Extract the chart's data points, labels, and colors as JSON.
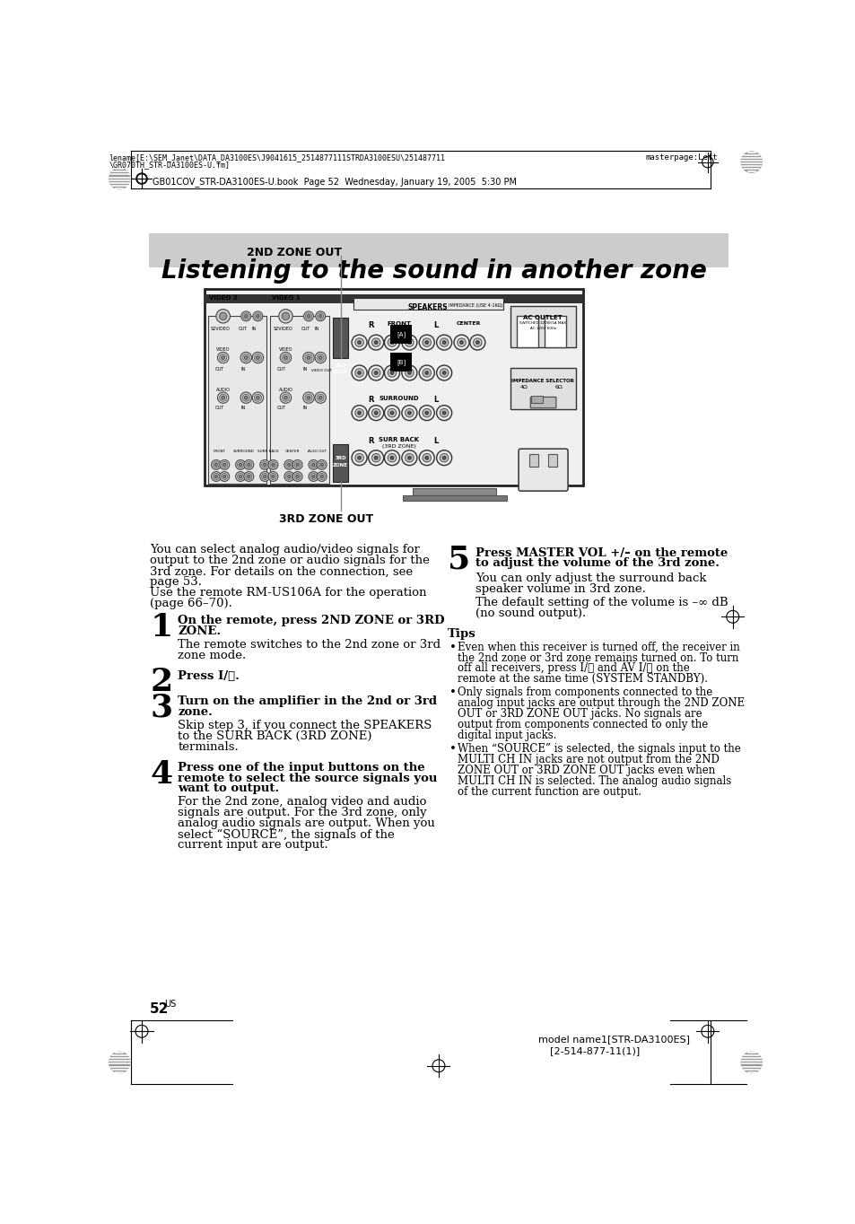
{
  "page_bg": "#ffffff",
  "header_line1": "lename[E:\\SEM_Janet\\DATA_DA3100ES\\J9041615_2514877111STRDA3100ESU\\251487711",
  "header_line2": "\\GR070TH_STR-DA3100ES-U.fm]",
  "header_right": "masterpage:Left",
  "header_bookline": "GB01COV_STR-DA3100ES-U.book  Page 52  Wednesday, January 19, 2005  5:30 PM",
  "title": "Listening to the sound in another zone",
  "title_bg": "#c8c8c8",
  "label_2nd_zone": "2ND ZONE OUT",
  "label_3rd_zone": "3RD ZONE OUT",
  "footer_page": "52",
  "footer_sup": "US",
  "footer_model": "model name1[STR-DA3100ES]",
  "footer_code": "[2-514-877-11(1)]",
  "intro_lines": [
    "You can select analog audio/video signals for",
    "output to the 2nd zone or audio signals for the",
    "3rd zone. For details on the connection, see",
    "page 53.",
    "Use the remote RM-US106A for the operation",
    "(page 66–70)."
  ],
  "step1_num": "1",
  "step1_bold1": "On the remote, press 2ND ZONE or 3RD",
  "step1_bold2": "ZONE.",
  "step1_body1": "The remote switches to the 2nd zone or 3rd",
  "step1_body2": "zone mode.",
  "step2_num": "2",
  "step2_bold": "Press I/⏻.",
  "step3_num": "3",
  "step3_bold1": "Turn on the amplifier in the 2nd or 3rd",
  "step3_bold2": "zone.",
  "step3_body1": "Skip step 3, if you connect the SPEAKERS",
  "step3_body2": "to the SURR BACK (3RD ZONE)",
  "step3_body3": "terminals.",
  "step4_num": "4",
  "step4_bold1": "Press one of the input buttons on the",
  "step4_bold2": "remote to select the source signals you",
  "step4_bold3": "want to output.",
  "step4_body1": "For the 2nd zone, analog video and audio",
  "step4_body2": "signals are output. For the 3rd zone, only",
  "step4_body3": "analog audio signals are output. When you",
  "step4_body4": "select “SOURCE”, the signals of the",
  "step4_body5": "current input are output.",
  "step5_num": "5",
  "step5_bold1": "Press MASTER VOL +/– on the remote",
  "step5_bold2": "to adjust the volume of the 3rd zone.",
  "step5_body1": "You can only adjust the surround back",
  "step5_body2": "speaker volume in 3rd zone.",
  "step5_body3": "The default setting of the volume is –∞ dB",
  "step5_body4": "(no sound output).",
  "tips_title": "Tips",
  "tip1_lines": [
    "Even when this receiver is turned off, the receiver in",
    "the 2nd zone or 3rd zone remains turned on. To turn",
    "off all receivers, press I/⏻ and AV I/⏻ on the",
    "remote at the same time (SYSTEM STANDBY)."
  ],
  "tip2_lines": [
    "Only signals from components connected to the",
    "analog input jacks are output through the 2ND ZONE",
    "OUT or 3RD ZONE OUT jacks. No signals are",
    "output from components connected to only the",
    "digital input jacks."
  ],
  "tip3_lines": [
    "When “SOURCE” is selected, the signals input to the",
    "MULTI CH IN jacks are not output from the 2ND",
    "ZONE OUT or 3RD ZONE OUT jacks even when",
    "MULTI CH IN is selected. The analog audio signals",
    "of the current function are output."
  ]
}
